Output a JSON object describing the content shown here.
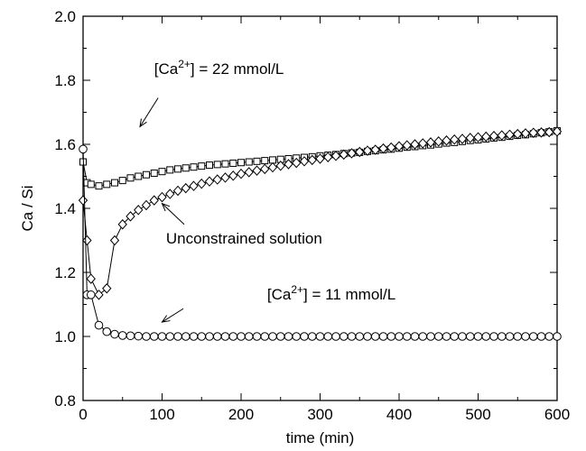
{
  "chart_data": {
    "type": "scatter",
    "title": "",
    "xlabel": "time (min)",
    "ylabel": "Ca / Si",
    "xlim": [
      0,
      600
    ],
    "ylim": [
      0.8,
      2.0
    ],
    "xticks": [
      0,
      100,
      200,
      300,
      400,
      500,
      600
    ],
    "yticks": [
      0.8,
      1.0,
      1.2,
      1.4,
      1.6,
      1.8,
      2.0
    ],
    "xtick_labels": [
      "0",
      "100",
      "200",
      "300",
      "400",
      "500",
      "600"
    ],
    "ytick_labels": [
      "0.8",
      "1.0",
      "1.2",
      "1.4",
      "1.6",
      "1.8",
      "2.0"
    ],
    "grid": false,
    "series": [
      {
        "marker": "square",
        "x": [
          0,
          5,
          10,
          20,
          30,
          40,
          50,
          60,
          70,
          80,
          90,
          100,
          110,
          120,
          130,
          140,
          150,
          160,
          170,
          180,
          190,
          200,
          210,
          220,
          230,
          240,
          250,
          260,
          270,
          280,
          290,
          300,
          310,
          320,
          330,
          340,
          350,
          360,
          370,
          380,
          390,
          400,
          410,
          420,
          430,
          440,
          450,
          460,
          470,
          480,
          490,
          500,
          510,
          520,
          530,
          540,
          550,
          560,
          570,
          580,
          590,
          600
        ],
        "y": [
          1.545,
          1.48,
          1.475,
          1.47,
          1.475,
          1.48,
          1.487,
          1.495,
          1.5,
          1.505,
          1.51,
          1.515,
          1.52,
          1.523,
          1.526,
          1.529,
          1.532,
          1.535,
          1.537,
          1.539,
          1.541,
          1.543,
          1.545,
          1.547,
          1.549,
          1.551,
          1.553,
          1.555,
          1.557,
          1.559,
          1.561,
          1.564,
          1.566,
          1.568,
          1.571,
          1.573,
          1.575,
          1.578,
          1.58,
          1.583,
          1.585,
          1.588,
          1.591,
          1.593,
          1.596,
          1.598,
          1.601,
          1.604,
          1.606,
          1.609,
          1.612,
          1.614,
          1.617,
          1.62,
          1.622,
          1.625,
          1.628,
          1.63,
          1.633,
          1.636,
          1.639,
          1.642
        ]
      },
      {
        "marker": "diamond",
        "x": [
          0,
          5,
          10,
          20,
          30,
          40,
          50,
          60,
          70,
          80,
          90,
          100,
          110,
          120,
          130,
          140,
          150,
          160,
          170,
          180,
          190,
          200,
          210,
          220,
          230,
          240,
          250,
          260,
          270,
          280,
          290,
          300,
          310,
          320,
          330,
          340,
          350,
          360,
          370,
          380,
          390,
          400,
          410,
          420,
          430,
          440,
          450,
          460,
          470,
          480,
          490,
          500,
          510,
          520,
          530,
          540,
          550,
          560,
          570,
          580,
          590,
          600
        ],
        "y": [
          1.425,
          1.3,
          1.18,
          1.13,
          1.15,
          1.3,
          1.35,
          1.375,
          1.395,
          1.41,
          1.425,
          1.435,
          1.445,
          1.455,
          1.463,
          1.47,
          1.477,
          1.484,
          1.49,
          1.496,
          1.502,
          1.508,
          1.513,
          1.518,
          1.523,
          1.528,
          1.533,
          1.538,
          1.542,
          1.547,
          1.551,
          1.555,
          1.56,
          1.564,
          1.568,
          1.572,
          1.576,
          1.58,
          1.583,
          1.587,
          1.59,
          1.594,
          1.597,
          1.6,
          1.603,
          1.606,
          1.609,
          1.612,
          1.615,
          1.617,
          1.62,
          1.622,
          1.624,
          1.626,
          1.628,
          1.63,
          1.632,
          1.634,
          1.636,
          1.637,
          1.638,
          1.64
        ]
      },
      {
        "marker": "circle",
        "x": [
          0,
          5,
          10,
          20,
          30,
          40,
          50,
          60,
          70,
          80,
          90,
          100,
          110,
          120,
          130,
          140,
          150,
          160,
          170,
          180,
          190,
          200,
          210,
          220,
          230,
          240,
          250,
          260,
          270,
          280,
          290,
          300,
          310,
          320,
          330,
          340,
          350,
          360,
          370,
          380,
          390,
          400,
          410,
          420,
          430,
          440,
          450,
          460,
          470,
          480,
          490,
          500,
          510,
          520,
          530,
          540,
          550,
          560,
          570,
          580,
          590,
          600
        ],
        "y": [
          1.585,
          1.13,
          1.13,
          1.035,
          1.015,
          1.007,
          1.003,
          1.002,
          1.001,
          1.0,
          1.0,
          1.0,
          1.0,
          1.0,
          1.0,
          1.0,
          1.0,
          1.0,
          1.0,
          1.0,
          1.0,
          1.0,
          1.0,
          1.0,
          1.0,
          1.0,
          1.0,
          1.0,
          1.0,
          1.0,
          1.0,
          1.0,
          1.0,
          1.0,
          1.0,
          1.0,
          1.0,
          1.0,
          1.0,
          1.0,
          1.0,
          1.0,
          1.0,
          1.0,
          1.0,
          1.0,
          1.0,
          1.0,
          1.0,
          1.0,
          1.0,
          1.0,
          1.0,
          1.0,
          1.0,
          1.0,
          1.0,
          1.0,
          1.0,
          1.0,
          1.0,
          1.0
        ]
      }
    ],
    "annotations": [
      {
        "name": "annotation-ca-22",
        "text_main": "[Ca",
        "text_sup": "2+",
        "text_tail": "] = 22 mmol/L",
        "text_x": 90,
        "text_y": 1.82,
        "arrow_from": [
          95,
          1.745
        ],
        "arrow_to": [
          72,
          1.655
        ]
      },
      {
        "name": "annotation-unconstrained",
        "text_main": "Unconstrained solution",
        "text_sup": "",
        "text_tail": "",
        "text_x": 105,
        "text_y": 1.29,
        "arrow_from": [
          128,
          1.35
        ],
        "arrow_to": [
          100,
          1.415
        ]
      },
      {
        "name": "annotation-ca-11",
        "text_main": "[Ca",
        "text_sup": "2+",
        "text_tail": "] = 11 mmol/L",
        "text_x": 233,
        "text_y": 1.115,
        "arrow_from": [
          127,
          1.087
        ],
        "arrow_to": [
          100,
          1.045
        ]
      }
    ]
  }
}
